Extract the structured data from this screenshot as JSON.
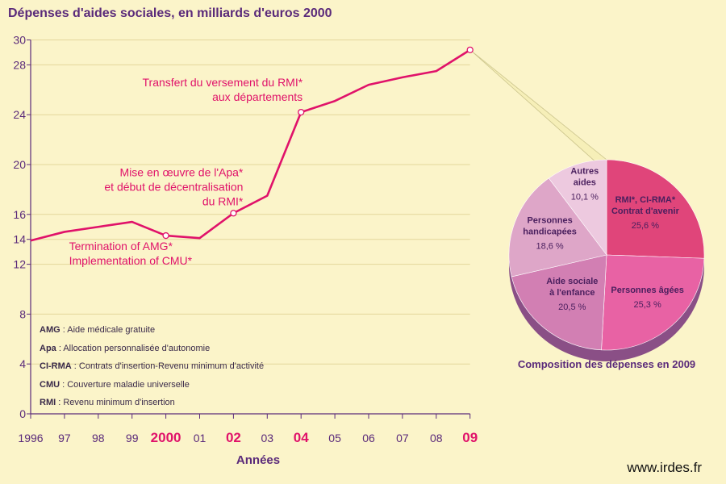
{
  "chart_data": [
    {
      "type": "line",
      "title": "Dépenses d'aides sociales, en milliards d'euros 2000",
      "xlabel": "Années",
      "ylabel": "",
      "x": [
        "1996",
        "97",
        "98",
        "99",
        "2000",
        "01",
        "02",
        "03",
        "04",
        "05",
        "06",
        "07",
        "08",
        "09"
      ],
      "x_highlight": [
        "2000",
        "02",
        "04",
        "09"
      ],
      "yticks": [
        0,
        4,
        8,
        12,
        14,
        16,
        20,
        24,
        28,
        30
      ],
      "ylim": [
        0,
        30
      ],
      "grid": true,
      "series": [
        {
          "values": [
            13.9,
            14.6,
            15.0,
            15.4,
            14.3,
            14.1,
            16.1,
            17.5,
            24.2,
            25.1,
            26.4,
            27.0,
            27.5,
            29.2
          ]
        }
      ],
      "annotations": [
        {
          "x": "2000",
          "y": 14.3,
          "lines": [
            "Termination of AMG*",
            "Implementation of CMU*"
          ]
        },
        {
          "x": "02",
          "y": 16.1,
          "lines": [
            "Mise en œuvre de l'Apa*",
            "et début de décentralisation",
            "du RMI*"
          ]
        },
        {
          "x": "04",
          "y": 24.2,
          "lines": [
            "Transfert du versement du RMI*",
            "aux départements"
          ]
        }
      ],
      "glossary": [
        {
          "abbr": "AMG",
          "text": " : Aide médicale gratuite"
        },
        {
          "abbr": "Apa",
          "text": " : Allocation personnalisée d'autonomie"
        },
        {
          "abbr": "CI-RMA",
          "text": " : Contrats d'insertion-Revenu minimum d'activité"
        },
        {
          "abbr": "CMU",
          "text": " : Couverture maladie universelle"
        },
        {
          "abbr": "RMI",
          "text": " : Revenu minimum d'insertion"
        }
      ]
    },
    {
      "type": "pie",
      "title": "Composition des dépenses en 2009",
      "slices": [
        {
          "lines": [
            "RMI*, CI-RMA*",
            "Contrat d'avenir"
          ],
          "value": 25.6,
          "value_label": "25,6 %",
          "color": "#e0457a"
        },
        {
          "lines": [
            "Personnes âgées"
          ],
          "value": 25.3,
          "value_label": "25,3 %",
          "color": "#e862a4"
        },
        {
          "lines": [
            "Aide sociale",
            "à l'enfance"
          ],
          "value": 20.5,
          "value_label": "20,5 %",
          "color": "#d27fb3"
        },
        {
          "lines": [
            "Personnes",
            "handicapées"
          ],
          "value": 18.6,
          "value_label": "18,6 %",
          "color": "#dea6c8"
        },
        {
          "lines": [
            "Autres",
            "aides"
          ],
          "value": 10.1,
          "value_label": "10,1 %",
          "color": "#edc9df"
        }
      ]
    }
  ],
  "footer": "www.irdes.fr",
  "colors": {
    "background": "#fbf4c9",
    "line": "#e0126a",
    "highlight": "#e0126a",
    "axis_text": "#5a2a7a",
    "grid": "#e3d79b"
  }
}
